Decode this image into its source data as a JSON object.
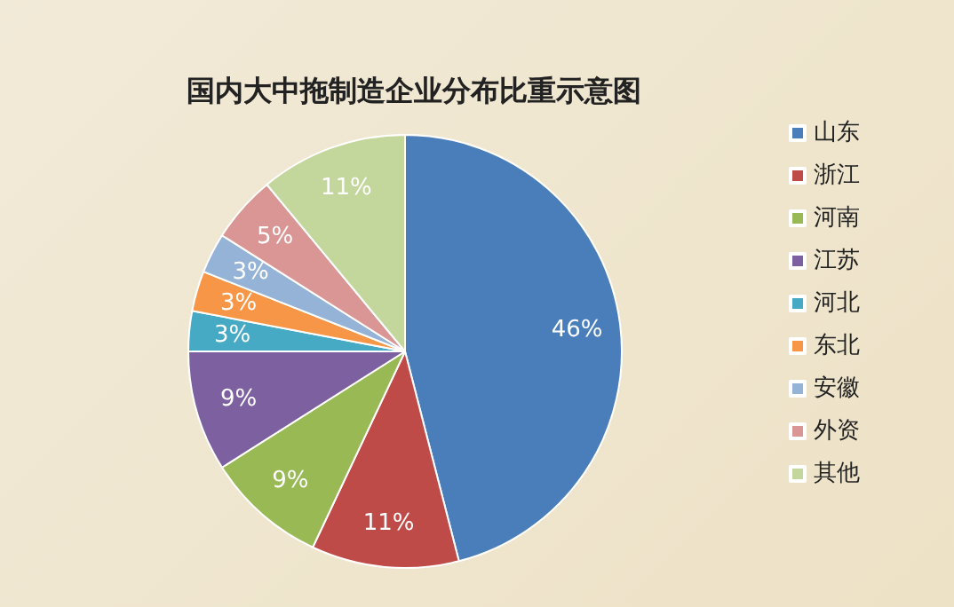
{
  "chart_data": {
    "type": "pie",
    "title": "国内大中拖制造企业分布比重示意图",
    "categories": [
      "山东",
      "浙江",
      "河南",
      "江苏",
      "河北",
      "东北",
      "安徽",
      "外资",
      "其他"
    ],
    "values": [
      46,
      11,
      9,
      9,
      3,
      3,
      3,
      5,
      11
    ],
    "colors": [
      "#4a7ebb",
      "#be4b48",
      "#98b954",
      "#7d60a0",
      "#46aac5",
      "#f79646",
      "#94b3d6",
      "#da9694",
      "#c3d69b"
    ],
    "value_labels": [
      "46%",
      "11%",
      "9%",
      "9%",
      "3%",
      "3%",
      "3%",
      "5%",
      "11%"
    ],
    "legend": "right"
  }
}
